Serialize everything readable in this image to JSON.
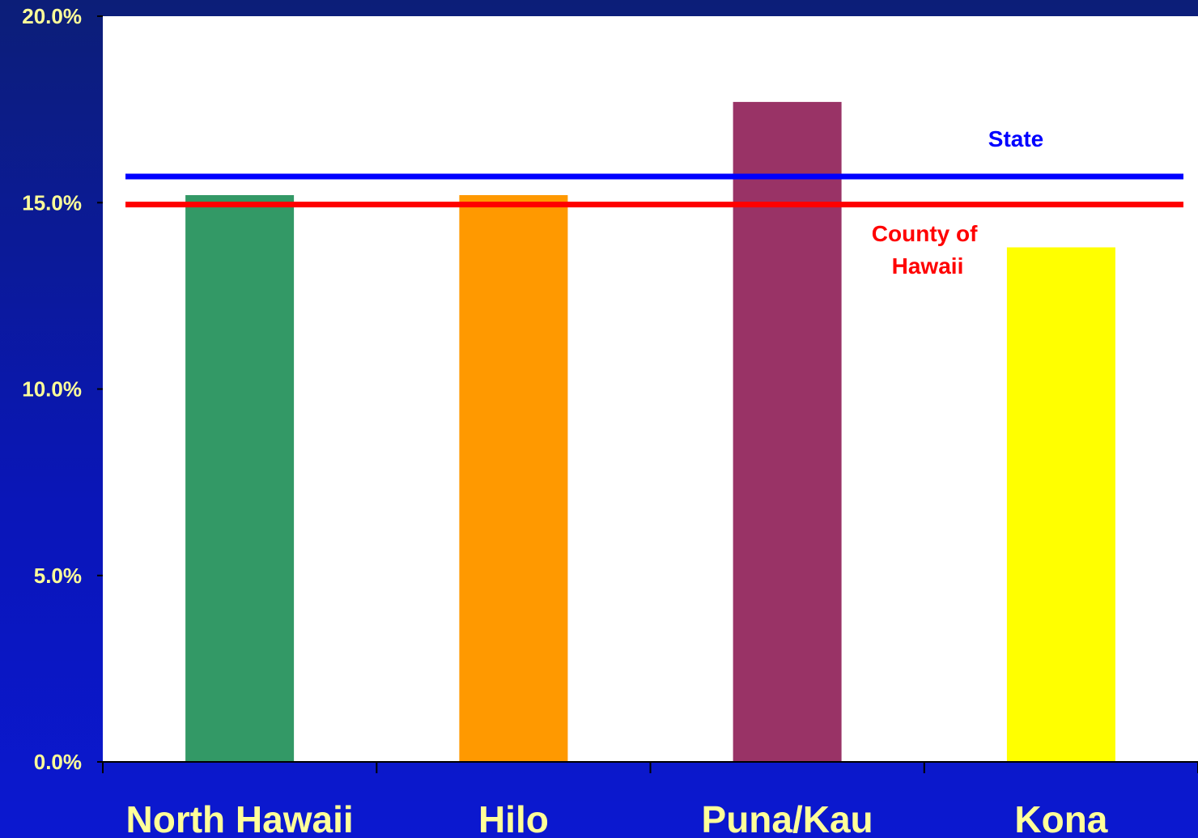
{
  "chart_data": {
    "type": "bar",
    "categories": [
      "North Hawaii",
      "Hilo",
      "Puna/Kau",
      "Kona"
    ],
    "values": [
      15.2,
      15.2,
      17.7,
      13.8
    ],
    "colors": [
      "#339966",
      "#ff9900",
      "#993366",
      "#ffff00"
    ],
    "ylim": [
      0,
      20
    ],
    "yticks": [
      "0.0%",
      "5.0%",
      "10.0%",
      "15.0%",
      "20.0%"
    ],
    "ytick_values": [
      0,
      5,
      10,
      15,
      20
    ],
    "reference_lines": [
      {
        "name": "State",
        "value": 15.7,
        "color": "#0000ff"
      },
      {
        "name": "County of Hawaii",
        "value": 14.95,
        "color": "#ff0000"
      }
    ],
    "text_color": "#ffff99",
    "plot_background": "#ffffff",
    "grid": false
  },
  "labels": {
    "state": "State",
    "county_line1": "County of",
    "county_line2": "Hawaii"
  }
}
